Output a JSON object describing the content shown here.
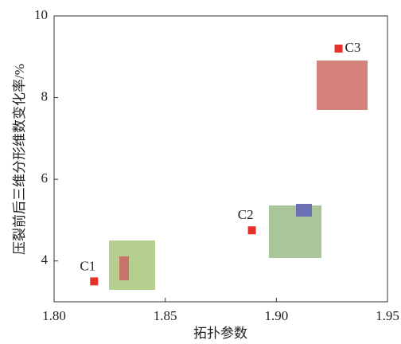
{
  "chart_data": {
    "type": "scatter",
    "xlabel": "拓扑参数",
    "ylabel": "压裂前后三维分形维数变化率/%",
    "x": [
      1.818,
      1.889,
      1.928
    ],
    "values": [
      3.5,
      4.75,
      9.2
    ],
    "labels": [
      "C1",
      "C2",
      "C3"
    ],
    "color": "#e8302a",
    "xlim": [
      1.8,
      1.95
    ],
    "xticks": [
      {
        "value": 1.8,
        "label": "1.80"
      },
      {
        "value": 1.85,
        "label": "1.85"
      },
      {
        "value": 1.9,
        "label": "1.90"
      },
      {
        "value": 1.95,
        "label": "1.95"
      }
    ],
    "ylim": [
      3,
      10
    ],
    "yticks": [
      4,
      6,
      8,
      10
    ]
  }
}
